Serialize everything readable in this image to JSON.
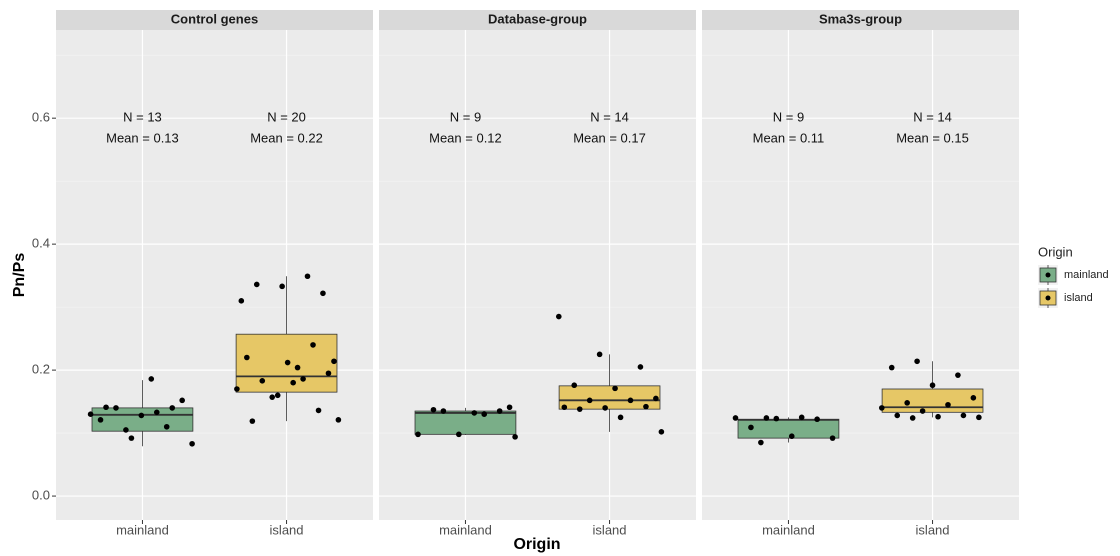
{
  "chart_data": {
    "type": "box",
    "y_label": "Pn/Ps",
    "x_label": "Origin",
    "legend_title": "Origin",
    "legend_position": "right",
    "grid": true,
    "ylim": [
      -0.038,
      0.74
    ],
    "yticks": [
      {
        "value": 0,
        "label": "0.0"
      },
      0.2,
      0.4,
      0.6
    ],
    "minor_yticks": [
      0.1,
      0.3,
      0.5,
      0.7
    ],
    "categories": [
      "mainland",
      "island"
    ],
    "colors": [
      "#7aae88",
      "#e6c766"
    ],
    "facets": [
      {
        "title": "Control genes",
        "annotations": [
          [
            "N = 13",
            "Mean = 0.13"
          ],
          [
            "N = 20",
            "Mean = 0.22"
          ]
        ],
        "boxes": [
          {
            "min": 0.079,
            "q1": 0.103,
            "median": 0.129,
            "q3": 0.14,
            "max": 0.184,
            "points": [
              0.186,
              0.083,
              0.105,
              0.11,
              0.121,
              0.128,
              0.152,
              0.14,
              0.133,
              0.13,
              0.092,
              0.14,
              0.141
            ]
          },
          {
            "min": 0.119,
            "q1": 0.165,
            "median": 0.19,
            "q3": 0.257,
            "max": 0.349,
            "points": [
              0.349,
              0.31,
              0.333,
              0.322,
              0.336,
              0.204,
              0.121,
              0.157,
              0.24,
              0.22,
              0.212,
              0.195,
              0.183,
              0.186,
              0.17,
              0.16,
              0.136,
              0.119,
              0.18,
              0.214
            ]
          }
        ]
      },
      {
        "title": "Database-group",
        "annotations": [
          [
            "N = 9",
            "Mean = 0.12"
          ],
          [
            "N = 14",
            "Mean = 0.17"
          ]
        ],
        "boxes": [
          {
            "min": 0.097,
            "q1": 0.098,
            "median": 0.132,
            "q3": 0.135,
            "max": 0.14,
            "points": [
              0.141,
              0.135,
              0.13,
              0.098,
              0.098,
              0.135,
              0.137,
              0.132,
              0.094
            ]
          },
          {
            "min": 0.102,
            "q1": 0.138,
            "median": 0.152,
            "q3": 0.175,
            "max": 0.225,
            "points": [
              0.285,
              0.225,
              0.205,
              0.176,
              0.171,
              0.155,
              0.152,
              0.152,
              0.141,
              0.14,
              0.142,
              0.138,
              0.125,
              0.102
            ]
          }
        ]
      },
      {
        "title": "Sma3s-group",
        "annotations": [
          [
            "N = 9",
            "Mean = 0.11"
          ],
          [
            "N = 14",
            "Mean = 0.15"
          ]
        ],
        "boxes": [
          {
            "min": 0.085,
            "q1": 0.092,
            "median": 0.121,
            "q3": 0.122,
            "max": 0.125,
            "points": [
              0.085,
              0.125,
              0.124,
              0.123,
              0.122,
              0.109,
              0.095,
              0.092,
              0.124
            ]
          },
          {
            "min": 0.125,
            "q1": 0.133,
            "median": 0.141,
            "q3": 0.17,
            "max": 0.214,
            "points": [
              0.214,
              0.192,
              0.204,
              0.176,
              0.156,
              0.148,
              0.145,
              0.14,
              0.135,
              0.128,
              0.128,
              0.126,
              0.125,
              0.124
            ]
          }
        ]
      }
    ]
  }
}
